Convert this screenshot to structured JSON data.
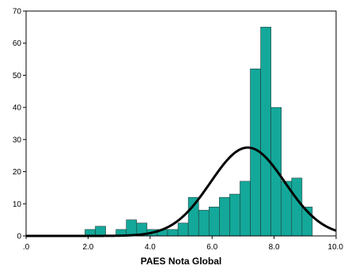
{
  "chart_data": {
    "type": "bar",
    "title": "",
    "xlabel": "PAES Nota Global",
    "ylabel": "",
    "xlim": [
      0,
      10
    ],
    "ylim": [
      0,
      70
    ],
    "x_ticks": [
      0,
      2,
      4,
      6,
      8,
      10
    ],
    "x_tick_labels": [
      ".0",
      "2.0",
      "4.0",
      "6.0",
      "8.0",
      "10.0"
    ],
    "y_ticks": [
      0,
      10,
      20,
      30,
      40,
      50,
      60,
      70
    ],
    "y_tick_labels": [
      "0",
      "10",
      "20",
      "30",
      "40",
      "50",
      "60",
      "70"
    ],
    "grid": false,
    "legend": "none",
    "bin_width": 0.333,
    "bins": [
      {
        "start": 1.9,
        "count": 2
      },
      {
        "start": 2.233,
        "count": 3
      },
      {
        "start": 2.9,
        "count": 2
      },
      {
        "start": 3.233,
        "count": 5
      },
      {
        "start": 3.567,
        "count": 4
      },
      {
        "start": 3.9,
        "count": 2
      },
      {
        "start": 4.233,
        "count": 2
      },
      {
        "start": 4.567,
        "count": 2
      },
      {
        "start": 4.9,
        "count": 4
      },
      {
        "start": 5.233,
        "count": 12
      },
      {
        "start": 5.567,
        "count": 8
      },
      {
        "start": 5.9,
        "count": 9
      },
      {
        "start": 6.233,
        "count": 12
      },
      {
        "start": 6.567,
        "count": 13
      },
      {
        "start": 6.9,
        "count": 17
      },
      {
        "start": 7.233,
        "count": 52
      },
      {
        "start": 7.567,
        "count": 65
      },
      {
        "start": 7.9,
        "count": 40
      },
      {
        "start": 8.233,
        "count": 17
      },
      {
        "start": 8.567,
        "count": 18
      },
      {
        "start": 8.9,
        "count": 9
      }
    ],
    "normal_curve": {
      "mean": 7.15,
      "sd": 1.2,
      "peak": 27.5
    },
    "colors": {
      "bar_fill": "#14a89a",
      "bar_stroke": "#1f3f3c",
      "curve": "#000000",
      "axis": "#000000"
    }
  }
}
